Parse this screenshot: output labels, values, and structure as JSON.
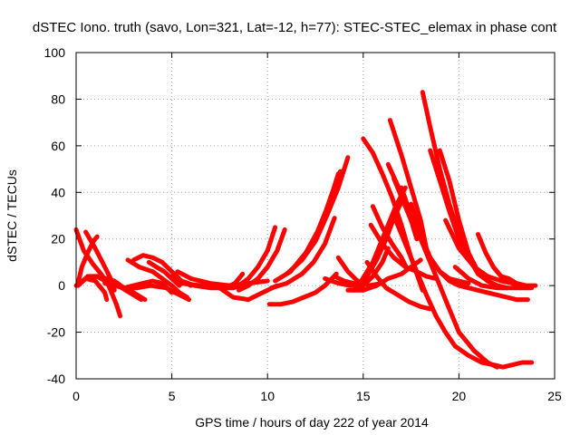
{
  "chart_data": {
    "type": "line",
    "title": "dSTEC Iono. truth (savo, Lon=321, Lat=-12, h=77): STEC-STEC_elemax in phase cont",
    "xlabel": "GPS time / hours of day 222 of year 2014",
    "ylabel": "dSTEC  / TECUs",
    "xlim": [
      0,
      25
    ],
    "ylim": [
      -40,
      100
    ],
    "xticks": [
      "0",
      "5",
      "10",
      "15",
      "20",
      "25"
    ],
    "yticks": [
      "-40",
      "-20",
      "0",
      "20",
      "40",
      "60",
      "80",
      "100"
    ],
    "grid": true,
    "color": "#ff0000",
    "series": [
      {
        "x": [
          0.0,
          0.4,
          0.9,
          1.3,
          1.7,
          2.1,
          2.3
        ],
        "y": [
          24,
          15,
          9,
          5,
          0,
          -8,
          -13
        ]
      },
      {
        "x": [
          0.0,
          0.5,
          1.0,
          1.5,
          1.6
        ],
        "y": [
          0,
          3,
          2,
          -3,
          -6
        ]
      },
      {
        "x": [
          0.1,
          0.5,
          1.0,
          1.5,
          2.0,
          2.6,
          3.4
        ],
        "y": [
          0,
          3,
          4,
          3,
          1,
          -2,
          -6
        ]
      },
      {
        "x": [
          0.5,
          1.0,
          1.5,
          1.8,
          2.0
        ],
        "y": [
          23,
          16,
          8,
          3,
          -2
        ]
      },
      {
        "x": [
          0.1,
          0.3,
          0.6,
          0.9,
          1.1
        ],
        "y": [
          1,
          8,
          14,
          19,
          21
        ]
      },
      {
        "x": [
          0.1,
          0.6,
          1.1,
          1.6,
          2.0,
          2.5,
          3.0,
          3.6
        ],
        "y": [
          0,
          4,
          4,
          3,
          2,
          -1,
          -3,
          -6
        ]
      },
      {
        "x": [
          1.1,
          1.5,
          2.0,
          2.6,
          3.2,
          3.9,
          4.7,
          5.4,
          5.9
        ],
        "y": [
          4,
          2,
          0,
          -1,
          -1,
          0,
          -1,
          -4,
          -6
        ]
      },
      {
        "x": [
          1.5,
          2.0,
          2.5,
          3.0,
          3.5,
          4.0,
          4.5,
          5.0
        ],
        "y": [
          1,
          0,
          -1,
          0,
          1,
          2,
          1,
          -3
        ]
      },
      {
        "x": [
          2.7,
          3.3,
          4.0,
          4.5,
          5.0,
          5.4,
          5.8
        ],
        "y": [
          11,
          8,
          6,
          3,
          0,
          -3,
          -5
        ]
      },
      {
        "x": [
          3.0,
          3.5,
          4.0,
          4.5,
          5.0,
          5.5,
          6.0
        ],
        "y": [
          11,
          13,
          12,
          10,
          6,
          2,
          0
        ]
      },
      {
        "x": [
          3.8,
          4.2,
          4.6,
          5.0,
          5.4
        ],
        "y": [
          10,
          8,
          6,
          3,
          0
        ]
      },
      {
        "x": [
          5.0,
          5.5,
          6.2,
          7.0,
          7.8,
          8.3,
          8.7
        ],
        "y": [
          4,
          2,
          0,
          -1,
          -1,
          1,
          5
        ]
      },
      {
        "x": [
          5.3,
          6.0,
          7.0,
          8.0,
          9.0,
          10.0
        ],
        "y": [
          6,
          3,
          1,
          0,
          1,
          2
        ]
      },
      {
        "x": [
          5.5,
          6.5,
          7.5,
          8.2,
          8.6
        ],
        "y": [
          1,
          0,
          -1,
          -1,
          0
        ]
      },
      {
        "x": [
          7.5,
          8.2,
          9.0,
          9.5,
          10.0,
          10.5
        ],
        "y": [
          -1,
          -5,
          -6,
          -4,
          -2,
          0
        ]
      },
      {
        "x": [
          7.8,
          8.5,
          9.0,
          9.5,
          10.0,
          10.4
        ],
        "y": [
          -1,
          0,
          3,
          8,
          15,
          25
        ]
      },
      {
        "x": [
          8.5,
          9.0,
          9.5,
          10.0,
          10.5,
          10.9
        ],
        "y": [
          -2,
          0,
          3,
          8,
          15,
          24
        ]
      },
      {
        "x": [
          10.1,
          10.7,
          11.3,
          11.9,
          12.5,
          13.0,
          13.6
        ],
        "y": [
          -8,
          -8,
          -7,
          -5,
          -3,
          0,
          5
        ]
      },
      {
        "x": [
          10.2,
          11.0,
          11.8,
          12.4,
          13.0,
          13.5
        ],
        "y": [
          -1,
          1,
          5,
          10,
          18,
          29
        ]
      },
      {
        "x": [
          10.4,
          11.2,
          12.0,
          12.6,
          13.2,
          13.7
        ],
        "y": [
          2,
          6,
          14,
          23,
          35,
          48
        ]
      },
      {
        "x": [
          11.0,
          11.8,
          12.5,
          13.1,
          13.7,
          14.2
        ],
        "y": [
          5,
          11,
          19,
          30,
          42,
          55
        ]
      },
      {
        "x": [
          11.5,
          12.2,
          12.8,
          13.3,
          13.8
        ],
        "y": [
          9,
          16,
          26,
          38,
          49
        ]
      },
      {
        "x": [
          13.0,
          13.7,
          14.3,
          15.0
        ],
        "y": [
          3,
          1,
          0,
          0
        ]
      },
      {
        "x": [
          13.5,
          14.0,
          14.5,
          15.0
        ],
        "y": [
          4,
          2,
          1,
          0
        ]
      },
      {
        "x": [
          13.7,
          14.2,
          14.7,
          15.3,
          16.0
        ],
        "y": [
          12,
          6,
          2,
          0,
          1
        ]
      },
      {
        "x": [
          14.2,
          15.0,
          15.7,
          16.3,
          17.0,
          17.5,
          18.0
        ],
        "y": [
          -2,
          -2,
          0,
          3,
          5,
          8,
          11
        ]
      },
      {
        "x": [
          14.5,
          15.0,
          15.5,
          16.0,
          16.3
        ],
        "y": [
          -2,
          0,
          4,
          10,
          16
        ]
      },
      {
        "x": [
          14.7,
          15.2,
          15.7,
          16.2,
          16.6,
          17.0
        ],
        "y": [
          0,
          4,
          11,
          20,
          29,
          36
        ]
      },
      {
        "x": [
          14.9,
          15.5,
          16.1,
          16.7,
          17.2
        ],
        "y": [
          2,
          10,
          22,
          34,
          42
        ]
      },
      {
        "x": [
          15.0,
          15.5,
          16.0,
          16.5,
          17.0,
          17.5,
          18.1
        ],
        "y": [
          63,
          57,
          48,
          38,
          26,
          12,
          -2
        ]
      },
      {
        "x": [
          15.4,
          16.0,
          16.6,
          17.2,
          17.8,
          18.3,
          18.8
        ],
        "y": [
          26,
          18,
          12,
          8,
          6,
          4,
          3
        ]
      },
      {
        "x": [
          15.5,
          16.0,
          16.5,
          17.0,
          17.3
        ],
        "y": [
          34,
          25,
          18,
          12,
          7
        ]
      },
      {
        "x": [
          16.3,
          16.8,
          17.2,
          17.5,
          17.8
        ],
        "y": [
          52,
          43,
          35,
          28,
          20
        ]
      },
      {
        "x": [
          16.4,
          17.0,
          17.5,
          18.0,
          18.3
        ],
        "y": [
          71,
          56,
          42,
          28,
          16
        ]
      },
      {
        "x": [
          15.2,
          15.7,
          16.2,
          16.8,
          17.4,
          18.0,
          18.5
        ],
        "y": [
          10,
          4,
          -1,
          -4,
          -7,
          -9,
          -10
        ]
      },
      {
        "x": [
          16.6,
          17.0,
          17.5,
          18.0,
          18.5,
          19.0,
          19.5,
          20.0,
          20.5
        ],
        "y": [
          46,
          38,
          28,
          20,
          12,
          6,
          2,
          0,
          -1
        ]
      },
      {
        "x": [
          17.0,
          17.5,
          18.0,
          18.5,
          19.0,
          19.5,
          20.0,
          20.8,
          21.5,
          22.0
        ],
        "y": [
          42,
          30,
          20,
          10,
          0,
          -10,
          -20,
          -28,
          -33,
          -35
        ]
      },
      {
        "x": [
          16.6,
          17.2,
          17.8,
          18.3,
          18.8,
          19.3,
          19.8,
          20.5,
          21.2,
          21.8,
          22.3,
          22.8,
          23.3,
          23.8
        ],
        "y": [
          30,
          18,
          6,
          -4,
          -13,
          -20,
          -26,
          -30,
          -33,
          -34,
          -35,
          -34,
          -33,
          -33
        ]
      },
      {
        "x": [
          17.5,
          18.0,
          18.5,
          19.0,
          19.5,
          20.0,
          20.5
        ],
        "y": [
          35,
          22,
          12,
          6,
          3,
          2,
          1
        ]
      },
      {
        "x": [
          18.1,
          18.5,
          19.0,
          19.5,
          20.0,
          20.5,
          21.0,
          21.5
        ],
        "y": [
          83,
          68,
          50,
          35,
          22,
          12,
          5,
          2
        ]
      },
      {
        "x": [
          18.5,
          19.0,
          19.5,
          20.0,
          20.5,
          21.0,
          21.5,
          22.0,
          22.5
        ],
        "y": [
          58,
          45,
          32,
          20,
          12,
          6,
          2,
          0,
          -1
        ]
      },
      {
        "x": [
          19.0,
          19.5,
          20.0,
          20.5,
          21.0,
          21.5,
          22.0,
          22.5
        ],
        "y": [
          58,
          45,
          28,
          14,
          6,
          2,
          0,
          -1
        ]
      },
      {
        "x": [
          19.3,
          20.0,
          20.8,
          21.5,
          22.2,
          22.8,
          23.4
        ],
        "y": [
          28,
          16,
          8,
          4,
          2,
          1,
          0
        ]
      },
      {
        "x": [
          19.8,
          20.5,
          21.2,
          22.0,
          22.8,
          23.4,
          23.8
        ],
        "y": [
          8,
          3,
          0,
          -1,
          -1,
          -1,
          -1
        ]
      },
      {
        "x": [
          20.5,
          21.0,
          21.5,
          22.0,
          22.5,
          23.0,
          23.6
        ],
        "y": [
          -1,
          -2,
          -3,
          -4,
          -5,
          -6,
          -6
        ]
      },
      {
        "x": [
          21.0,
          21.4,
          21.8,
          22.2,
          22.6,
          23.0,
          23.6
        ],
        "y": [
          22,
          14,
          8,
          4,
          2,
          0,
          -1
        ]
      },
      {
        "x": [
          22.2,
          22.6,
          23.0,
          23.5,
          24.0
        ],
        "y": [
          4,
          3,
          1,
          0,
          0
        ]
      }
    ]
  }
}
